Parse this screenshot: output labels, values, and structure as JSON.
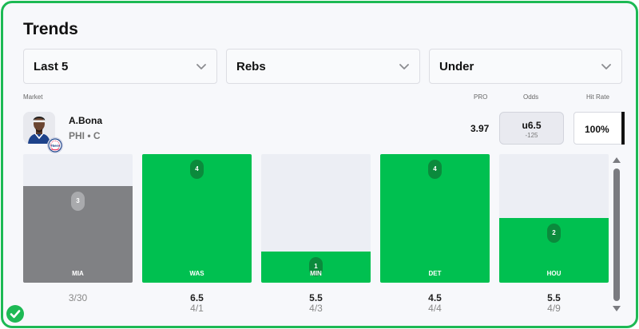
{
  "page": {
    "title": "Trends"
  },
  "filters": {
    "range": {
      "value": "Last 5"
    },
    "stat": {
      "value": "Rebs"
    },
    "side": {
      "value": "Under"
    }
  },
  "columns": {
    "market": "Market",
    "pro": "PRO",
    "odds": "Odds",
    "hit_rate": "Hit Rate"
  },
  "player": {
    "name": "A.Bona",
    "meta": "PHI • C",
    "team_logo_text": "76ers",
    "pro": "3.97",
    "odds_line": "u6.5",
    "odds_price": "-125",
    "hit_rate": "100%"
  },
  "games": [
    {
      "opponent": "MIA",
      "value": "3",
      "value_num": 3,
      "line": "",
      "date": "3/30",
      "result": "miss"
    },
    {
      "opponent": "WAS",
      "value": "4",
      "value_num": 4,
      "line": "6.5",
      "date": "4/1",
      "result": "hit"
    },
    {
      "opponent": "MIN",
      "value": "1",
      "value_num": 1,
      "line": "5.5",
      "date": "4/3",
      "result": "hit"
    },
    {
      "opponent": "DET",
      "value": "4",
      "value_num": 4,
      "line": "4.5",
      "date": "4/4",
      "result": "hit"
    },
    {
      "opponent": "HOU",
      "value": "2",
      "value_num": 2,
      "line": "5.5",
      "date": "4/9",
      "result": "hit"
    }
  ],
  "colors": {
    "accent": "#1db954",
    "hit": "#00c050",
    "hit_pill": "#0b8a3c",
    "miss": "#808184",
    "miss_pill": "#a9aaad",
    "track": "#eceef4"
  }
}
